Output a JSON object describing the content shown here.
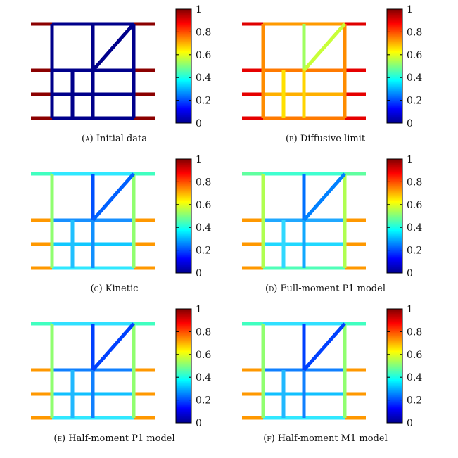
{
  "panels": [
    {
      "letter": "(a)",
      "title": "Initial data"
    },
    {
      "letter": "(b)",
      "title": "Diffusive limit"
    },
    {
      "letter": "(c)",
      "title": "Kinetic"
    },
    {
      "letter": "(d)",
      "title": "Full-moment P1 model"
    },
    {
      "letter": "(e)",
      "title": "Half-moment P1 model"
    },
    {
      "letter": "(f)",
      "title": "Half-moment M1 model"
    }
  ],
  "colorbar": {
    "tick_labels": [
      "0",
      "0.2",
      "0.4",
      "0.6",
      "0.8",
      "1"
    ],
    "ticks": [
      0,
      0.2,
      0.4,
      0.6,
      0.8,
      1
    ],
    "range": [
      0,
      1
    ],
    "colormap": "jet"
  },
  "chart_data": [
    {
      "type": "heatmap",
      "panel": "(a)",
      "colormap": "jet",
      "range": [
        0,
        1
      ],
      "description_values": {
        "interior_edges": 0.0,
        "boundary_edges": 1.0
      }
    },
    {
      "type": "heatmap",
      "panel": "(b)",
      "colormap": "jet",
      "range": [
        0,
        1
      ],
      "description_values": {
        "boundary_edges": 0.85,
        "outer_verticals": 0.78,
        "upper_middle_vertical": 0.55,
        "diagonal": 0.6,
        "lower_grid": 0.7
      }
    },
    {
      "type": "heatmap",
      "panel": "(c)",
      "colormap": "jet",
      "range": [
        0,
        1
      ],
      "description_values": {
        "boundary_edges": 0.75,
        "outer_verticals": 0.55,
        "top_edge": 0.4,
        "middle_vertical": 0.15,
        "diagonal": 0.2,
        "inner": 0.35
      }
    },
    {
      "type": "heatmap",
      "panel": "(d)",
      "colormap": "jet",
      "range": [
        0,
        1
      ],
      "description_values": {
        "boundary_edges": 0.75,
        "outer_verticals": 0.6,
        "top_edge": 0.45,
        "middle_vertical": 0.2,
        "diagonal": 0.25,
        "inner": 0.4
      }
    },
    {
      "type": "heatmap",
      "panel": "(e)",
      "colormap": "jet",
      "range": [
        0,
        1
      ],
      "description_values": {
        "boundary_edges": 0.75,
        "outer_verticals": 0.55,
        "top_edge": 0.4,
        "middle_vertical": 0.15,
        "diagonal": 0.15,
        "inner": 0.35
      }
    },
    {
      "type": "heatmap",
      "panel": "(f)",
      "colormap": "jet",
      "range": [
        0,
        1
      ],
      "description_values": {
        "boundary_edges": 0.75,
        "outer_verticals": 0.55,
        "top_edge": 0.4,
        "middle_vertical": 0.15,
        "diagonal": 0.15,
        "inner": 0.35
      }
    }
  ]
}
